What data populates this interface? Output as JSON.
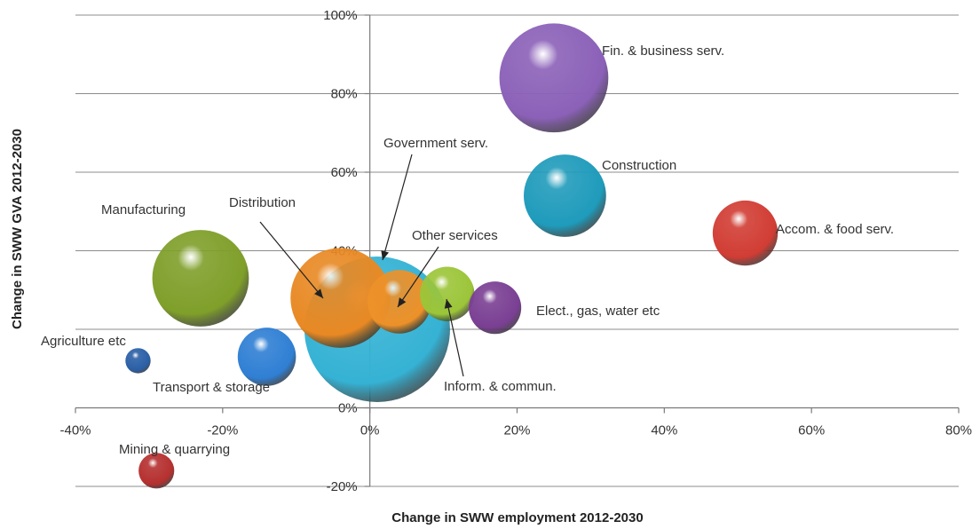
{
  "chart_data": {
    "type": "bubble",
    "xlabel": "Change in  SWW employment 2012-2030",
    "ylabel": "Change in SWW GVA 2012-2030",
    "xlim": [
      -40,
      80
    ],
    "ylim": [
      -20,
      100
    ],
    "x_ticks": [
      -40,
      -20,
      0,
      20,
      40,
      60,
      80
    ],
    "y_ticks": [
      -20,
      0,
      20,
      40,
      60,
      80,
      100
    ],
    "x_tick_labels": [
      "-40%",
      "-20%",
      "0%",
      "20%",
      "40%",
      "60%",
      "80%"
    ],
    "y_tick_labels": [
      "-20%",
      "0%",
      "20%",
      "40%",
      "60%",
      "80%",
      "100%"
    ],
    "grid": "horizontal",
    "series": [
      {
        "name": "Government serv.",
        "x": 1,
        "y": 20,
        "size": 100,
        "color": "#35b2d4"
      },
      {
        "name": "Fin. & business serv.",
        "x": 25,
        "y": 84,
        "size": 56,
        "color": "#8b61b8"
      },
      {
        "name": "Construction",
        "x": 26.5,
        "y": 54,
        "size": 32,
        "color": "#1f9bbb"
      },
      {
        "name": "Accom. & food serv.",
        "x": 51,
        "y": 44.5,
        "size": 20,
        "color": "#d13d34"
      },
      {
        "name": "Manufacturing",
        "x": -23,
        "y": 33,
        "size": 44,
        "color": "#7f9f2a"
      },
      {
        "name": "Distribution",
        "x": -4,
        "y": 28,
        "size": 47,
        "color": "#e88924"
      },
      {
        "name": "Other services",
        "x": 4,
        "y": 27,
        "size": 19,
        "color": "#ed9129"
      },
      {
        "name": "Inform. & commun.",
        "x": 10.5,
        "y": 29,
        "size": 14,
        "color": "#9cc539"
      },
      {
        "name": "Elect., gas, water etc",
        "x": 17,
        "y": 25.5,
        "size": 13,
        "color": "#7a3f93"
      },
      {
        "name": "Agriculture etc",
        "x": -31.5,
        "y": 12,
        "size": 3,
        "color": "#2a5fa6"
      },
      {
        "name": "Transport & storage",
        "x": -14,
        "y": 13,
        "size": 16,
        "color": "#2f7fd4"
      },
      {
        "name": "Mining & quarrying",
        "x": -29,
        "y": -16,
        "size": 6,
        "color": "#b5302f"
      }
    ]
  }
}
